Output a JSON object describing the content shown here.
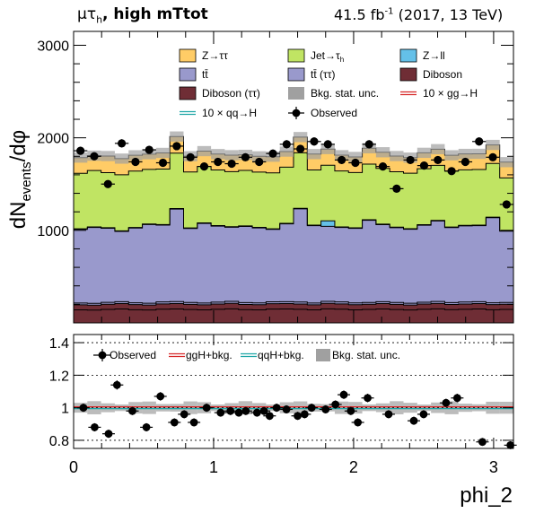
{
  "header": {
    "channel": "μτ",
    "channel_sub": "h",
    "category": ", high mTtot",
    "lumi_value": "41.5 fb",
    "lumi_exp": "-1",
    "lumi_tail": " (2017, 13 TeV)"
  },
  "colors": {
    "ztt": "#ffcc66",
    "jetfake": "#c0e463",
    "zll": "#64c0e8",
    "ttbar": "#9999cc",
    "ttbar_tt": "#9999cc",
    "diboson": "#6f2d35",
    "diboson_tt": "#6f2d35",
    "bkg_unc": "#a0a0a0",
    "ggh": "#d62728",
    "qqh": "#1fa6a6",
    "observed": "#000000"
  },
  "chart_data": [
    {
      "type": "area",
      "title": "",
      "xlabel": "",
      "ylabel_parts": [
        "dN",
        "events",
        "/dφ"
      ],
      "xlim": [
        0,
        3.14159
      ],
      "ylim": [
        0,
        3150
      ],
      "yticks": [
        1000,
        2000,
        3000
      ],
      "ytick_labels": [
        "1000",
        "2000",
        "3000"
      ],
      "x_edges": [
        0,
        0.0982,
        0.1963,
        0.2945,
        0.3927,
        0.4909,
        0.589,
        0.6872,
        0.7854,
        0.8836,
        0.9817,
        1.0799,
        1.1781,
        1.2763,
        1.3744,
        1.4726,
        1.5708,
        1.669,
        1.7671,
        1.8653,
        1.9635,
        2.0617,
        2.1598,
        2.258,
        2.3562,
        2.4544,
        2.5525,
        2.6507,
        2.7489,
        2.8471,
        2.9452,
        3.0434,
        3.1416
      ],
      "legend_labels": [
        "Z→ττ",
        "Jet→τ_h",
        "Z→ll",
        "tt̄",
        "tt̄ (ττ)",
        "Diboson",
        "Diboson (ττ)",
        "Bkg. stat. unc.",
        "10 × gg→H",
        "10 × qq→H",
        "Observed"
      ],
      "series": [
        {
          "name": "Diboson",
          "key": "diboson",
          "values": [
            140,
            138,
            145,
            150,
            142,
            139,
            148,
            150,
            144,
            140,
            146,
            152,
            143,
            141,
            149,
            150,
            147,
            140,
            152,
            148,
            141,
            145,
            150,
            144,
            139,
            146,
            151,
            143,
            147,
            150,
            142,
            145
          ]
        },
        {
          "name": "Diboson (ττ)",
          "key": "diboson_tt",
          "values": [
            55,
            54,
            56,
            58,
            55,
            54,
            57,
            58,
            56,
            55,
            57,
            59,
            56,
            55,
            58,
            58,
            57,
            55,
            59,
            57,
            55,
            56,
            58,
            56,
            54,
            57,
            59,
            56,
            57,
            58,
            55,
            56
          ]
        },
        {
          "name": "tt̄ (ττ)",
          "key": "ttbar_tt",
          "values": [
            20,
            19,
            21,
            21,
            20,
            19,
            21,
            22,
            20,
            20,
            21,
            22,
            20,
            20,
            21,
            21,
            21,
            20,
            22,
            21,
            20,
            20,
            21,
            20,
            19,
            20,
            22,
            20,
            21,
            21,
            20,
            20
          ]
        },
        {
          "name": "tt̄",
          "key": "ttbar",
          "values": [
            795,
            820,
            800,
            760,
            808,
            850,
            830,
            1000,
            800,
            860,
            822,
            800,
            823,
            810,
            782,
            841,
            1007,
            836,
            810,
            805,
            805,
            888,
            832,
            809,
            800,
            832,
            869,
            811,
            823,
            822,
            920,
            770
          ]
        },
        {
          "name": "Z→ll",
          "key": "zll",
          "values": [
            6,
            6,
            6,
            6,
            6,
            6,
            6,
            6,
            6,
            6,
            6,
            6,
            6,
            6,
            6,
            6,
            6,
            6,
            60,
            6,
            6,
            6,
            6,
            6,
            6,
            6,
            6,
            6,
            6,
            6,
            6,
            6
          ]
        },
        {
          "name": "Jet→τ_h",
          "key": "jetfake",
          "values": [
            600,
            610,
            595,
            605,
            610,
            590,
            600,
            598,
            605,
            610,
            600,
            595,
            600,
            598,
            605,
            607,
            600,
            595,
            600,
            605,
            598,
            600,
            602,
            598,
            600,
            605,
            595,
            605,
            600,
            600,
            580,
            570
          ]
        },
        {
          "name": "Z→ττ",
          "key": "ztt",
          "values": [
            170,
            160,
            180,
            175,
            170,
            165,
            175,
            180,
            170,
            165,
            172,
            178,
            168,
            170,
            175,
            168,
            170,
            172,
            175,
            170,
            168,
            172,
            175,
            170,
            168,
            172,
            175,
            170,
            172,
            170,
            200,
            170
          ]
        }
      ],
      "stat_unc": 55,
      "observed": {
        "name": "Observed",
        "values": [
          1860,
          1800,
          1500,
          1940,
          1740,
          1870,
          1730,
          1910,
          1790,
          1690,
          1740,
          1720,
          1790,
          1740,
          1830,
          1930,
          1880,
          1960,
          1930,
          1760,
          1730,
          1930,
          1690,
          1450,
          1760,
          1700,
          1760,
          1640,
          1740,
          1960,
          1790,
          1280
        ],
        "errors": [
          43,
          42,
          39,
          44,
          42,
          43,
          42,
          44,
          42,
          41,
          42,
          41,
          42,
          42,
          43,
          44,
          43,
          44,
          44,
          42,
          42,
          44,
          41,
          38,
          42,
          41,
          42,
          40,
          42,
          44,
          42,
          36
        ]
      }
    },
    {
      "type": "scatter",
      "title": "",
      "xlabel": "phi_2",
      "ylabel": "",
      "xlim": [
        0,
        3.14159
      ],
      "ylim": [
        0.75,
        1.45
      ],
      "yticks": [
        0.8,
        1.0,
        1.2,
        1.4
      ],
      "ytick_labels": [
        "0.8",
        "1",
        "1.2",
        "1.4"
      ],
      "xticks": [
        0,
        1,
        2,
        3
      ],
      "xtick_labels": [
        "0",
        "1",
        "2",
        "3"
      ],
      "legend_labels": [
        "Observed",
        "ggH+bkg.",
        "qqH+bkg.",
        "Bkg. stat. unc."
      ],
      "stat_unc": 0.03,
      "ratio": {
        "values": [
          1.0,
          0.88,
          0.84,
          1.14,
          0.98,
          0.88,
          1.07,
          0.91,
          0.96,
          0.91,
          1.0,
          0.97,
          0.98,
          0.97,
          0.98,
          0.97,
          0.98,
          0.95,
          1.0,
          0.99,
          0.95,
          0.96,
          1.0,
          0.99,
          1.02,
          1.08,
          0.98,
          0.91,
          1.06,
          0.96,
          0.92,
          0.96,
          1.03,
          1.06,
          0.79,
          0.77
        ],
        "x": [
          0.07,
          0.15,
          0.25,
          0.31,
          0.42,
          0.52,
          0.62,
          0.72,
          0.79,
          0.86,
          0.95,
          1.05,
          1.12,
          1.18,
          1.23,
          1.31,
          1.36,
          1.4,
          1.45,
          1.52,
          1.6,
          1.65,
          1.7,
          1.8,
          1.87,
          1.93,
          1.98,
          2.03,
          2.1,
          2.25,
          2.43,
          2.5,
          2.66,
          2.74,
          2.92,
          3.12
        ],
        "errors": [
          0.025,
          0.025,
          0.025,
          0.028,
          0.025,
          0.025,
          0.026,
          0.025,
          0.025,
          0.025,
          0.025,
          0.025,
          0.025,
          0.025,
          0.025,
          0.025,
          0.025,
          0.025,
          0.025,
          0.025,
          0.025,
          0.025,
          0.025,
          0.025,
          0.025,
          0.026,
          0.025,
          0.025,
          0.026,
          0.025,
          0.025,
          0.025,
          0.025,
          0.026,
          0.024,
          0.024
        ]
      }
    }
  ]
}
